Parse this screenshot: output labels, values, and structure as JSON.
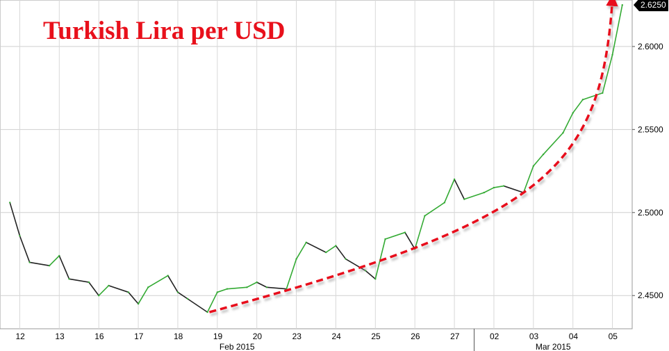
{
  "chart_data": {
    "type": "line",
    "title": "Turkish Lira per USD",
    "ylim": [
      2.43,
      2.628
    ],
    "y_ticks": [
      "2.4500",
      "2.5000",
      "2.5500",
      "2.6000"
    ],
    "last_value_label": "2.6250",
    "x_ticks": [
      "12",
      "13",
      "16",
      "17",
      "18",
      "19",
      "20",
      "23",
      "24",
      "25",
      "26",
      "27",
      "02",
      "03",
      "04",
      "05"
    ],
    "month_labels": [
      "Feb 2015",
      "Mar 2015"
    ],
    "grid": true,
    "series": [
      {
        "x": [
          "12",
          "12",
          "12",
          "13",
          "13",
          "13",
          "16",
          "16",
          "16",
          "17",
          "17",
          "17",
          "18",
          "18",
          "18",
          "19",
          "19",
          "19",
          "20",
          "20",
          "20",
          "23",
          "23",
          "23",
          "24",
          "24",
          "24",
          "25",
          "25",
          "25",
          "26",
          "26",
          "26",
          "27",
          "27",
          "27",
          "02",
          "02",
          "02",
          "03",
          "03",
          "03",
          "04",
          "04",
          "04",
          "05",
          "05",
          "05"
        ],
        "values": [
          2.506,
          2.486,
          2.47,
          2.468,
          2.474,
          2.46,
          2.458,
          2.45,
          2.456,
          2.452,
          2.445,
          2.455,
          2.462,
          2.452,
          2.448,
          2.44,
          2.452,
          2.454,
          2.455,
          2.458,
          2.455,
          2.454,
          2.472,
          2.482,
          2.476,
          2.48,
          2.472,
          2.465,
          2.46,
          2.484,
          2.488,
          2.478,
          2.498,
          2.506,
          2.52,
          2.508,
          2.512,
          2.515,
          2.516,
          2.512,
          2.528,
          2.535,
          2.548,
          2.56,
          2.568,
          2.572,
          2.595,
          2.625
        ]
      }
    ],
    "annotation": {
      "type": "trend-arrow",
      "color": "#e8101b",
      "style": "dashed"
    },
    "colors": {
      "up": "#33aa33",
      "down": "#222222",
      "title": "#e8101b",
      "last_badge": "#000000"
    }
  }
}
